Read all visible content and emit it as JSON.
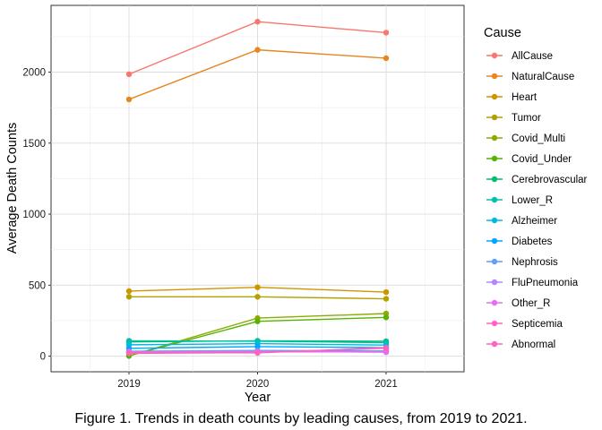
{
  "caption": "Figure 1. Trends in death counts by leading causes, from 2019 to 2021.",
  "chart_data": {
    "type": "line",
    "xlabel": "Year",
    "ylabel": "Average Death Counts",
    "x": [
      "2019",
      "2020",
      "2021"
    ],
    "y_ticks": [
      "0",
      "500",
      "1000",
      "1500",
      "2000"
    ],
    "ylim": [
      -110,
      2470
    ],
    "grid": true,
    "legend": {
      "title": "Cause",
      "position": "right"
    },
    "series": [
      {
        "name": "AllCause",
        "color": "#F8766D",
        "values": [
          1985,
          2355,
          2278
        ]
      },
      {
        "name": "NaturalCause",
        "color": "#E7851E",
        "values": [
          1808,
          2157,
          2098
        ]
      },
      {
        "name": "Heart",
        "color": "#D09400",
        "values": [
          458,
          485,
          451
        ]
      },
      {
        "name": "Tumor",
        "color": "#B2A100",
        "values": [
          418,
          418,
          404
        ]
      },
      {
        "name": "Covid_Multi",
        "color": "#8BAB00",
        "values": [
          2,
          268,
          300
        ]
      },
      {
        "name": "Covid_Under",
        "color": "#55B400",
        "values": [
          2,
          245,
          273
        ]
      },
      {
        "name": "Cerebrovascular",
        "color": "#00BE6C",
        "values": [
          100,
          108,
          105
        ]
      },
      {
        "name": "Lower_R",
        "color": "#00C1A7",
        "values": [
          108,
          105,
          95
        ]
      },
      {
        "name": "Alzheimer",
        "color": "#00BADE",
        "values": [
          80,
          88,
          78
        ]
      },
      {
        "name": "Diabetes",
        "color": "#00A6FF",
        "values": [
          55,
          67,
          60
        ]
      },
      {
        "name": "Nephrosis",
        "color": "#619CFF",
        "values": [
          35,
          40,
          37
        ]
      },
      {
        "name": "FluPneumonia",
        "color": "#B385FF",
        "values": [
          30,
          33,
          28
        ]
      },
      {
        "name": "Other_R",
        "color": "#E76BF3",
        "values": [
          28,
          30,
          30
        ]
      },
      {
        "name": "Septicemia",
        "color": "#FF61C9",
        "values": [
          25,
          23,
          60
        ]
      },
      {
        "name": "Abnormal",
        "color": "#FF62BC",
        "values": [
          20,
          25,
          55
        ]
      }
    ]
  }
}
